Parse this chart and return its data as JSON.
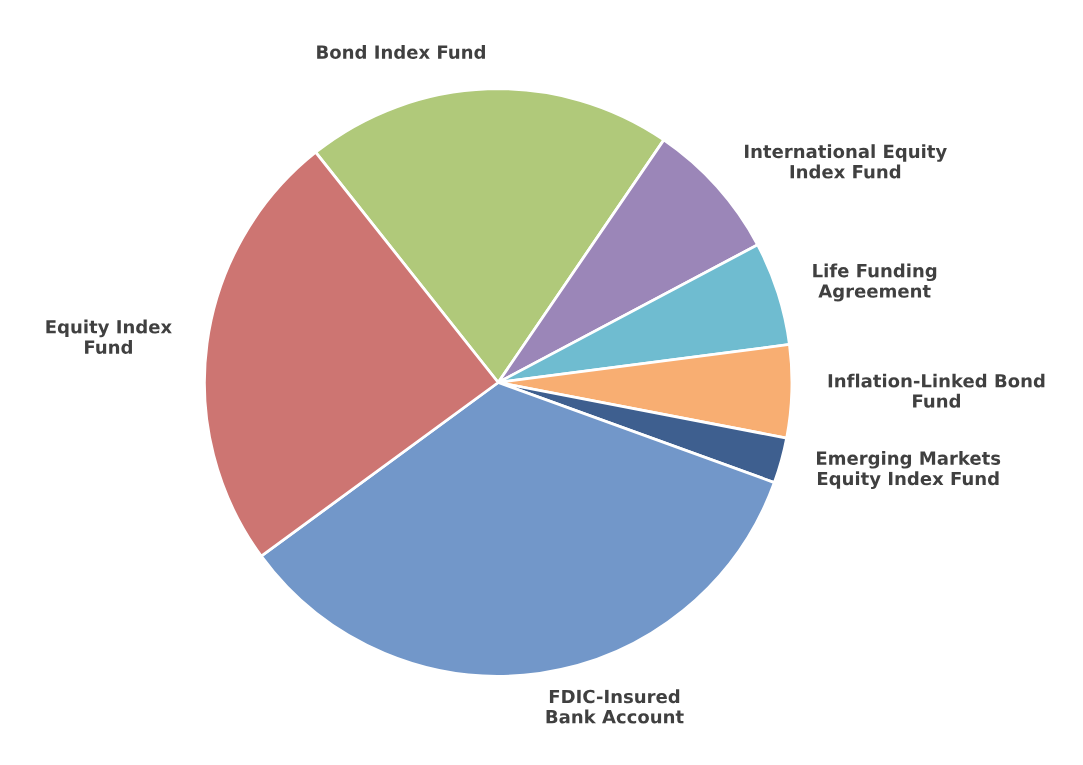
{
  "chart_data": {
    "type": "pie",
    "categories": [
      "Bond Index Fund",
      "International Equity\nIndex Fund",
      "Life Funding\nAgreement",
      "Inflation-Linked Bond\nFund",
      "Emerging Markets\nEquity Index Fund",
      "FDIC-Insured\nBank Account",
      "Equity Index\nFund"
    ],
    "values": [
      20.2,
      7.7,
      5.7,
      5.1,
      2.5,
      34.4,
      24.4
    ],
    "colors": [
      "#b0c97a",
      "#9b86b8",
      "#6fbcd0",
      "#f8ae72",
      "#3e5f8f",
      "#7297c9",
      "#cd7572"
    ],
    "legend": false
  }
}
